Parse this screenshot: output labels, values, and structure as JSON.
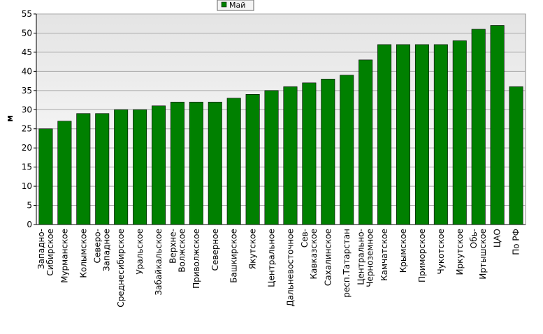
{
  "chart_data": {
    "type": "bar",
    "y_label": "м",
    "series": [
      {
        "name": "Май",
        "color": "#008000",
        "values": [
          25,
          27,
          29,
          29,
          30,
          30,
          31,
          32,
          32,
          32,
          33,
          34,
          35,
          36,
          37,
          38,
          39,
          43,
          47,
          47,
          47,
          47,
          48,
          51,
          52,
          36
        ]
      }
    ],
    "categories": [
      "Западно-\nСибирское",
      "Мурманское",
      "Колымское",
      "Северо-\nЗападное",
      "Среднесибирское",
      "Уральское",
      "Забайкальское",
      "Верхне-\nВолжское",
      "Приволжское",
      "Северное",
      "Башкирское",
      "Якутское",
      "Центральное",
      "Дальневосточное",
      "Сев-\nКавказское",
      "Сахалинское",
      "респ.Татарстан",
      "Центрально-\nЧерноземное",
      "Камчатское",
      "Крымское",
      "Приморское",
      "Чукотское",
      "Иркутское",
      "Обь-\nИртышское",
      "ЦАО",
      "По РФ"
    ],
    "ylim": [
      0,
      55
    ],
    "yticks": [
      0,
      5,
      10,
      15,
      20,
      25,
      30,
      35,
      40,
      45,
      50,
      55
    ],
    "grid": true,
    "legend": "top"
  }
}
